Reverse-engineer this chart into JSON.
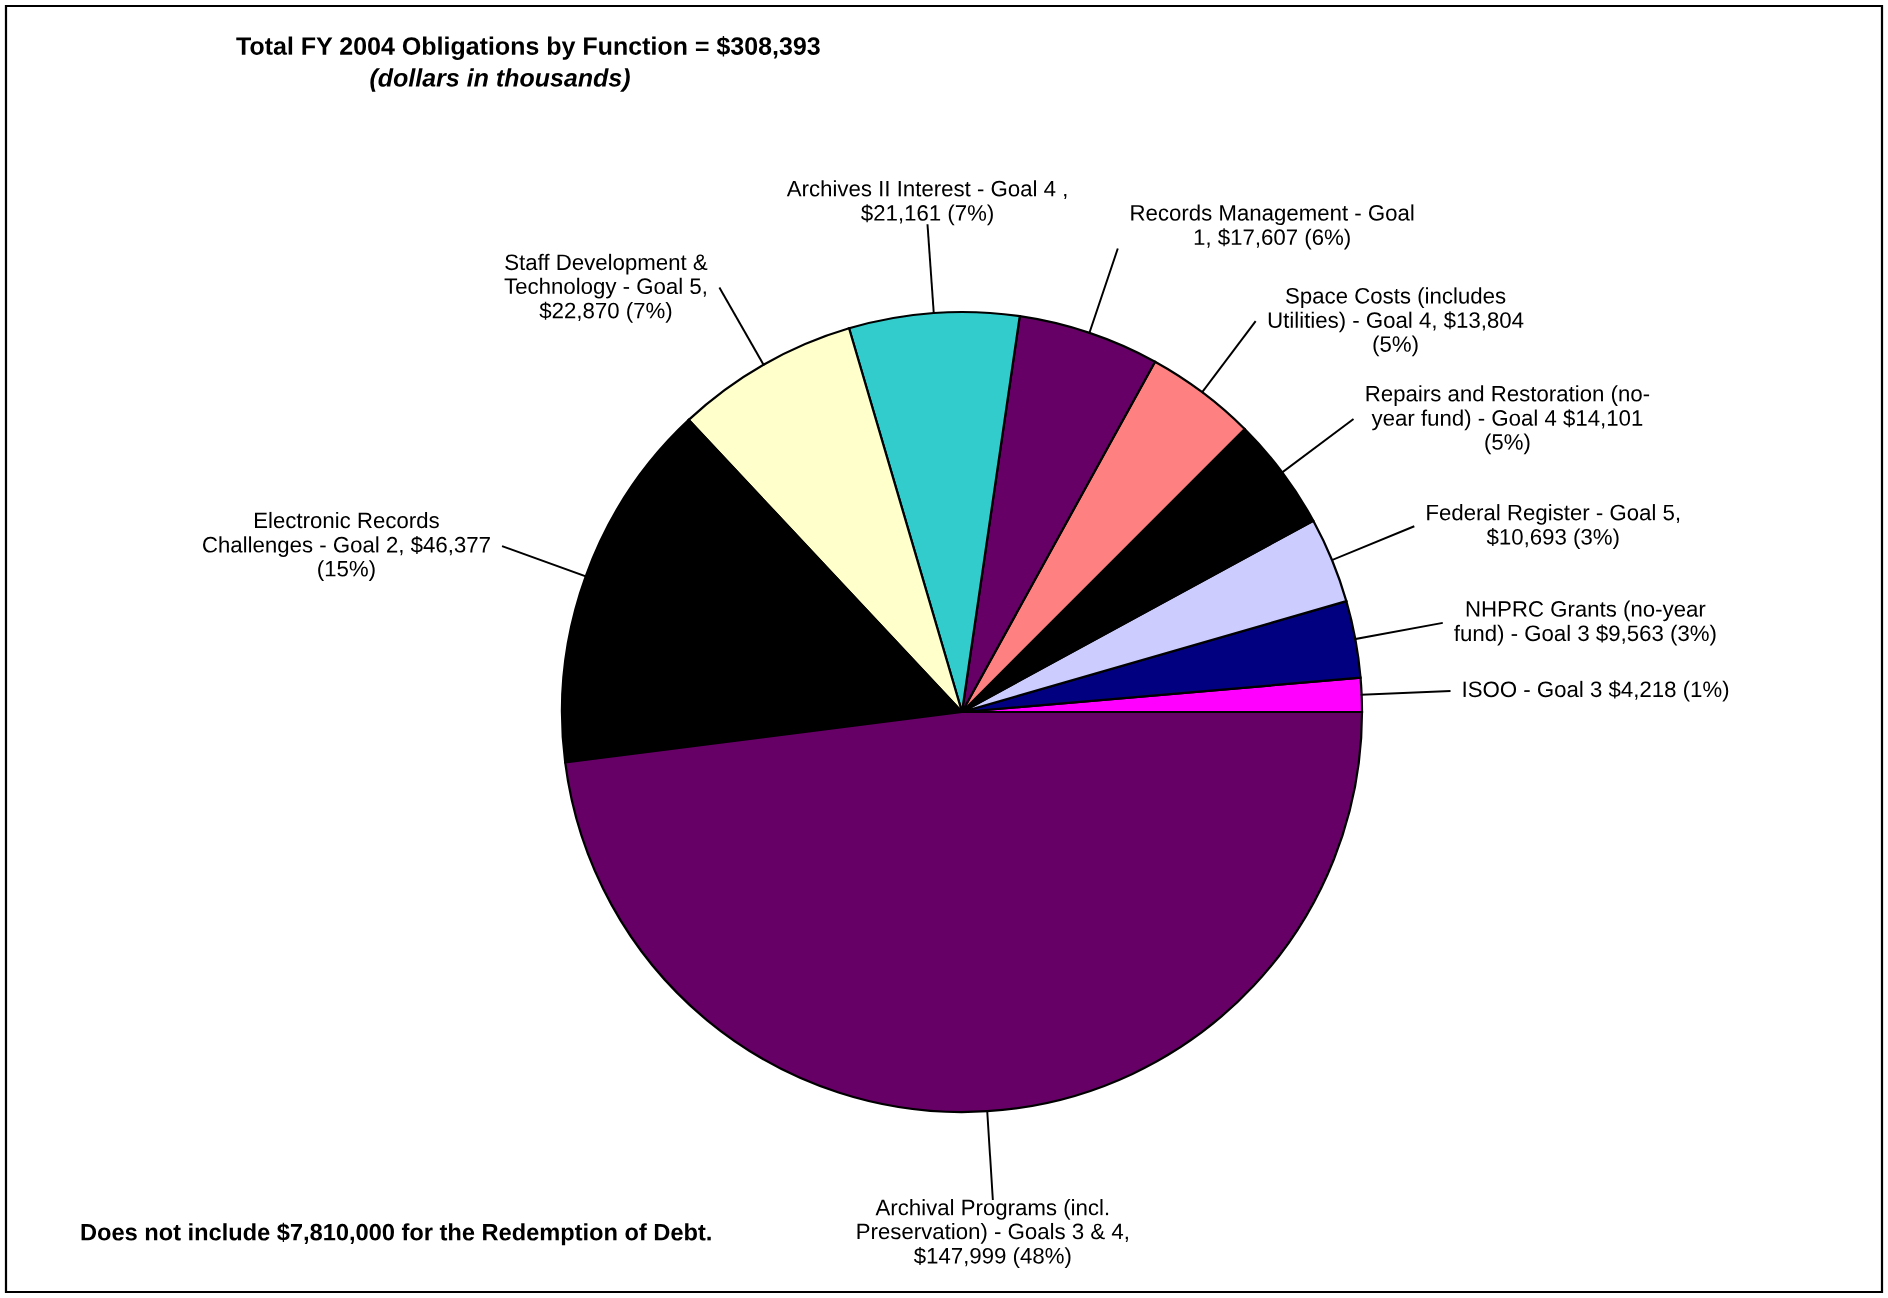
{
  "chart_data": {
    "type": "pie",
    "title": "Total FY 2004 Obligations by Function = $308,393",
    "subtitle": "(dollars in thousands)",
    "categories": [
      "ISOO - Goal 3 $4,218 (1%)",
      "NHPRC Grants (no-year\nfund) - Goal 3 $9,563 (3%)",
      "Federal Register - Goal 5,\n$10,693 (3%)",
      "Repairs and Restoration (no-\nyear fund) - Goal 4 $14,101\n(5%)",
      "Space Costs (includes\nUtilities) - Goal 4, $13,804\n(5%)",
      "Records Management - Goal\n1, $17,607 (6%)",
      "Archives II Interest - Goal 4 ,\n$21,161 (7%)",
      "Staff Development &\nTechnology - Goal 5,\n$22,870 (7%)",
      "Electronic Records\nChallenges - Goal 2, $46,377\n(15%)",
      "Archival Programs (incl.\nPreservation) - Goals 3 & 4,\n$147,999 (48%)"
    ],
    "values": [
      4218,
      9563,
      10693,
      14101,
      13804,
      17607,
      21161,
      22870,
      46377,
      147999
    ],
    "colors": [
      "#ff00ff",
      "#000080",
      "#ccccff",
      "#000000",
      "#ff8080",
      "#660066",
      "#33cccc",
      "#ffffcc",
      "#000000",
      "#660066"
    ],
    "annotations": [
      "Does not include $7,810,000 for the Redemption of Debt."
    ],
    "legend": false
  }
}
